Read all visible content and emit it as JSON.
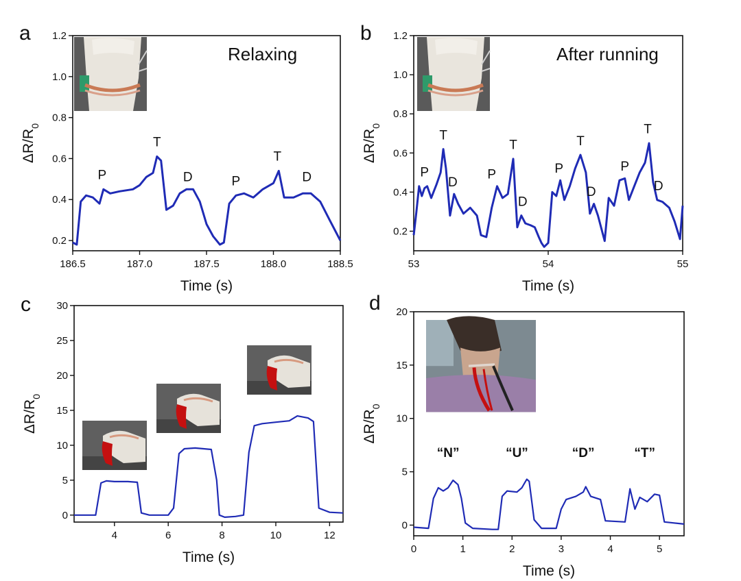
{
  "colors": {
    "line": "#1f2bb5",
    "axis": "#111111",
    "photo_bg": "#6b6b6b",
    "photo_glove": "#e8e4dc",
    "photo_red": "#c41010",
    "photo_skin": "#c9a58e",
    "photo_shirt": "#9a7fa8"
  },
  "chart_data": [
    {
      "id": "a",
      "type": "line",
      "panel_label": "a",
      "title": "Relaxing",
      "xlabel": "Time (s)",
      "ylabel": "ΔR/R",
      "ylabel_sub": "0",
      "xlim": [
        186.5,
        188.5
      ],
      "ylim": [
        0.15,
        1.2
      ],
      "xticks": [
        186.5,
        187.0,
        187.5,
        188.0,
        188.5
      ],
      "xtick_labels": [
        "186.5",
        "187.0",
        "187.5",
        "188.0",
        "188.5"
      ],
      "yticks": [
        0.2,
        0.4,
        0.6,
        0.8,
        1.0,
        1.2
      ],
      "ytick_labels": [
        "0.2",
        "0.4",
        "0.6",
        "0.8",
        "1.0",
        "1.2"
      ],
      "inset_photo": "wrist-sensor",
      "annotations": [
        {
          "text": "P",
          "x": 186.72,
          "y": 0.5
        },
        {
          "text": "T",
          "x": 187.13,
          "y": 0.66
        },
        {
          "text": "D",
          "x": 187.36,
          "y": 0.49
        },
        {
          "text": "P",
          "x": 187.72,
          "y": 0.47
        },
        {
          "text": "T",
          "x": 188.03,
          "y": 0.59
        },
        {
          "text": "D",
          "x": 188.25,
          "y": 0.49
        }
      ],
      "x": [
        186.5,
        186.53,
        186.56,
        186.6,
        186.65,
        186.7,
        186.73,
        186.78,
        186.85,
        186.95,
        187.0,
        187.05,
        187.1,
        187.13,
        187.16,
        187.2,
        187.25,
        187.3,
        187.35,
        187.4,
        187.45,
        187.5,
        187.55,
        187.6,
        187.63,
        187.67,
        187.72,
        187.78,
        187.85,
        187.92,
        188.0,
        188.04,
        188.08,
        188.15,
        188.22,
        188.28,
        188.35,
        188.42,
        188.5
      ],
      "y": [
        0.19,
        0.18,
        0.39,
        0.42,
        0.41,
        0.38,
        0.45,
        0.43,
        0.44,
        0.45,
        0.47,
        0.51,
        0.53,
        0.61,
        0.59,
        0.35,
        0.37,
        0.43,
        0.45,
        0.45,
        0.39,
        0.28,
        0.22,
        0.18,
        0.19,
        0.38,
        0.42,
        0.43,
        0.41,
        0.45,
        0.48,
        0.54,
        0.41,
        0.41,
        0.43,
        0.43,
        0.39,
        0.3,
        0.2
      ]
    },
    {
      "id": "b",
      "type": "line",
      "panel_label": "b",
      "title": "After running",
      "xlabel": "Time (s)",
      "ylabel": "ΔR/R",
      "ylabel_sub": "0",
      "xlim": [
        53,
        55
      ],
      "ylim": [
        0.1,
        1.2
      ],
      "xticks": [
        53,
        54,
        55
      ],
      "xtick_labels": [
        "53",
        "54",
        "55"
      ],
      "yticks": [
        0.2,
        0.4,
        0.6,
        0.8,
        1.0,
        1.2
      ],
      "ytick_labels": [
        "0.2",
        "0.4",
        "0.6",
        "0.8",
        "1.0",
        "1.2"
      ],
      "inset_photo": "wrist-sensor",
      "annotations": [
        {
          "text": "P",
          "x": 53.08,
          "y": 0.48
        },
        {
          "text": "T",
          "x": 53.22,
          "y": 0.67
        },
        {
          "text": "D",
          "x": 53.29,
          "y": 0.43
        },
        {
          "text": "P",
          "x": 53.58,
          "y": 0.47
        },
        {
          "text": "T",
          "x": 53.74,
          "y": 0.62
        },
        {
          "text": "D",
          "x": 53.81,
          "y": 0.33
        },
        {
          "text": "P",
          "x": 54.08,
          "y": 0.5
        },
        {
          "text": "T",
          "x": 54.24,
          "y": 0.64
        },
        {
          "text": "D",
          "x": 54.32,
          "y": 0.38
        },
        {
          "text": "P",
          "x": 54.57,
          "y": 0.51
        },
        {
          "text": "T",
          "x": 54.74,
          "y": 0.7
        },
        {
          "text": "D",
          "x": 54.82,
          "y": 0.41
        }
      ],
      "x": [
        53.0,
        53.02,
        53.04,
        53.06,
        53.08,
        53.1,
        53.13,
        53.17,
        53.2,
        53.22,
        53.24,
        53.27,
        53.3,
        53.33,
        53.37,
        53.42,
        53.47,
        53.5,
        53.54,
        53.58,
        53.62,
        53.66,
        53.7,
        53.74,
        53.77,
        53.8,
        53.83,
        53.87,
        53.9,
        53.93,
        53.95,
        53.97,
        54.0,
        54.03,
        54.06,
        54.09,
        54.12,
        54.16,
        54.2,
        54.24,
        54.28,
        54.31,
        54.34,
        54.37,
        54.42,
        54.45,
        54.49,
        54.53,
        54.57,
        54.6,
        54.64,
        54.68,
        54.72,
        54.75,
        54.78,
        54.81,
        54.85,
        54.9,
        54.94,
        54.98,
        55.0
      ],
      "y": [
        0.18,
        0.3,
        0.43,
        0.38,
        0.42,
        0.43,
        0.37,
        0.44,
        0.5,
        0.62,
        0.52,
        0.28,
        0.39,
        0.34,
        0.29,
        0.32,
        0.28,
        0.18,
        0.17,
        0.32,
        0.43,
        0.37,
        0.39,
        0.57,
        0.22,
        0.28,
        0.24,
        0.23,
        0.22,
        0.17,
        0.14,
        0.12,
        0.14,
        0.4,
        0.38,
        0.46,
        0.36,
        0.43,
        0.52,
        0.59,
        0.5,
        0.29,
        0.34,
        0.28,
        0.15,
        0.37,
        0.33,
        0.46,
        0.47,
        0.36,
        0.43,
        0.5,
        0.55,
        0.65,
        0.45,
        0.36,
        0.35,
        0.32,
        0.25,
        0.16,
        0.33
      ]
    },
    {
      "id": "c",
      "type": "line",
      "panel_label": "c",
      "title": "",
      "xlabel": "Time (s)",
      "ylabel": "ΔR/R",
      "ylabel_sub": "0",
      "xlim": [
        2.5,
        12.5
      ],
      "ylim": [
        -1,
        30
      ],
      "xticks": [
        4,
        6,
        8,
        10,
        12
      ],
      "xtick_labels": [
        "4",
        "6",
        "8",
        "10",
        "12"
      ],
      "yticks": [
        0,
        5,
        10,
        15,
        20,
        25,
        30
      ],
      "ytick_labels": [
        "0",
        "5",
        "10",
        "15",
        "20",
        "25",
        "30"
      ],
      "inset_photos": [
        "finger-bend-small",
        "finger-bend-medium",
        "finger-bend-large"
      ],
      "annotations": [],
      "x": [
        2.5,
        3.0,
        3.3,
        3.5,
        3.7,
        4.0,
        4.5,
        4.85,
        5.0,
        5.3,
        6.0,
        6.2,
        6.4,
        6.6,
        7.0,
        7.6,
        7.8,
        7.9,
        8.1,
        8.5,
        8.8,
        9.0,
        9.2,
        9.5,
        10.0,
        10.5,
        10.8,
        11.2,
        11.4,
        11.6,
        12.0,
        12.5
      ],
      "y": [
        0,
        0,
        0,
        4.6,
        4.9,
        4.8,
        4.8,
        4.7,
        0.3,
        0,
        0,
        1,
        8.8,
        9.5,
        9.6,
        9.4,
        5,
        0,
        -0.3,
        -0.2,
        0,
        9,
        12.8,
        13.1,
        13.3,
        13.5,
        14.2,
        13.9,
        13.4,
        1,
        0.4,
        0.3
      ]
    },
    {
      "id": "d",
      "type": "line",
      "panel_label": "d",
      "title": "",
      "xlabel": "Time (s)",
      "ylabel": "ΔR/R",
      "ylabel_sub": "0",
      "xlim": [
        0,
        5.5
      ],
      "ylim": [
        -1,
        20
      ],
      "xticks": [
        0,
        1,
        2,
        3,
        4,
        5
      ],
      "xtick_labels": [
        "0",
        "1",
        "2",
        "3",
        "4",
        "5"
      ],
      "yticks": [
        0,
        5,
        10,
        15,
        20
      ],
      "ytick_labels": [
        "0",
        "5",
        "10",
        "15",
        "20"
      ],
      "inset_photo": "throat-sensor",
      "word_labels": [
        {
          "text": "“N”",
          "x": 0.7,
          "y": 6.4
        },
        {
          "text": "“U”",
          "x": 2.1,
          "y": 6.4
        },
        {
          "text": "“D”",
          "x": 3.45,
          "y": 6.4
        },
        {
          "text": "“T”",
          "x": 4.7,
          "y": 6.4
        }
      ],
      "annotations": [],
      "x": [
        0,
        0.3,
        0.4,
        0.5,
        0.6,
        0.7,
        0.8,
        0.9,
        0.97,
        1.05,
        1.2,
        1.6,
        1.72,
        1.8,
        1.9,
        2.1,
        2.2,
        2.3,
        2.35,
        2.45,
        2.6,
        2.9,
        3.0,
        3.1,
        3.3,
        3.45,
        3.5,
        3.6,
        3.8,
        3.9,
        4.3,
        4.4,
        4.5,
        4.6,
        4.75,
        4.9,
        5.0,
        5.1,
        5.5
      ],
      "y": [
        -0.2,
        -0.3,
        2.5,
        3.5,
        3.2,
        3.5,
        4.2,
        3.8,
        2.5,
        0.2,
        -0.3,
        -0.4,
        -0.4,
        2.7,
        3.2,
        3.1,
        3.5,
        4.3,
        4.1,
        0.5,
        -0.3,
        -0.3,
        1.5,
        2.4,
        2.7,
        3.1,
        3.6,
        2.7,
        2.4,
        0.4,
        0.3,
        3.4,
        1.5,
        2.6,
        2.2,
        2.9,
        2.8,
        0.3,
        0.1
      ]
    }
  ]
}
